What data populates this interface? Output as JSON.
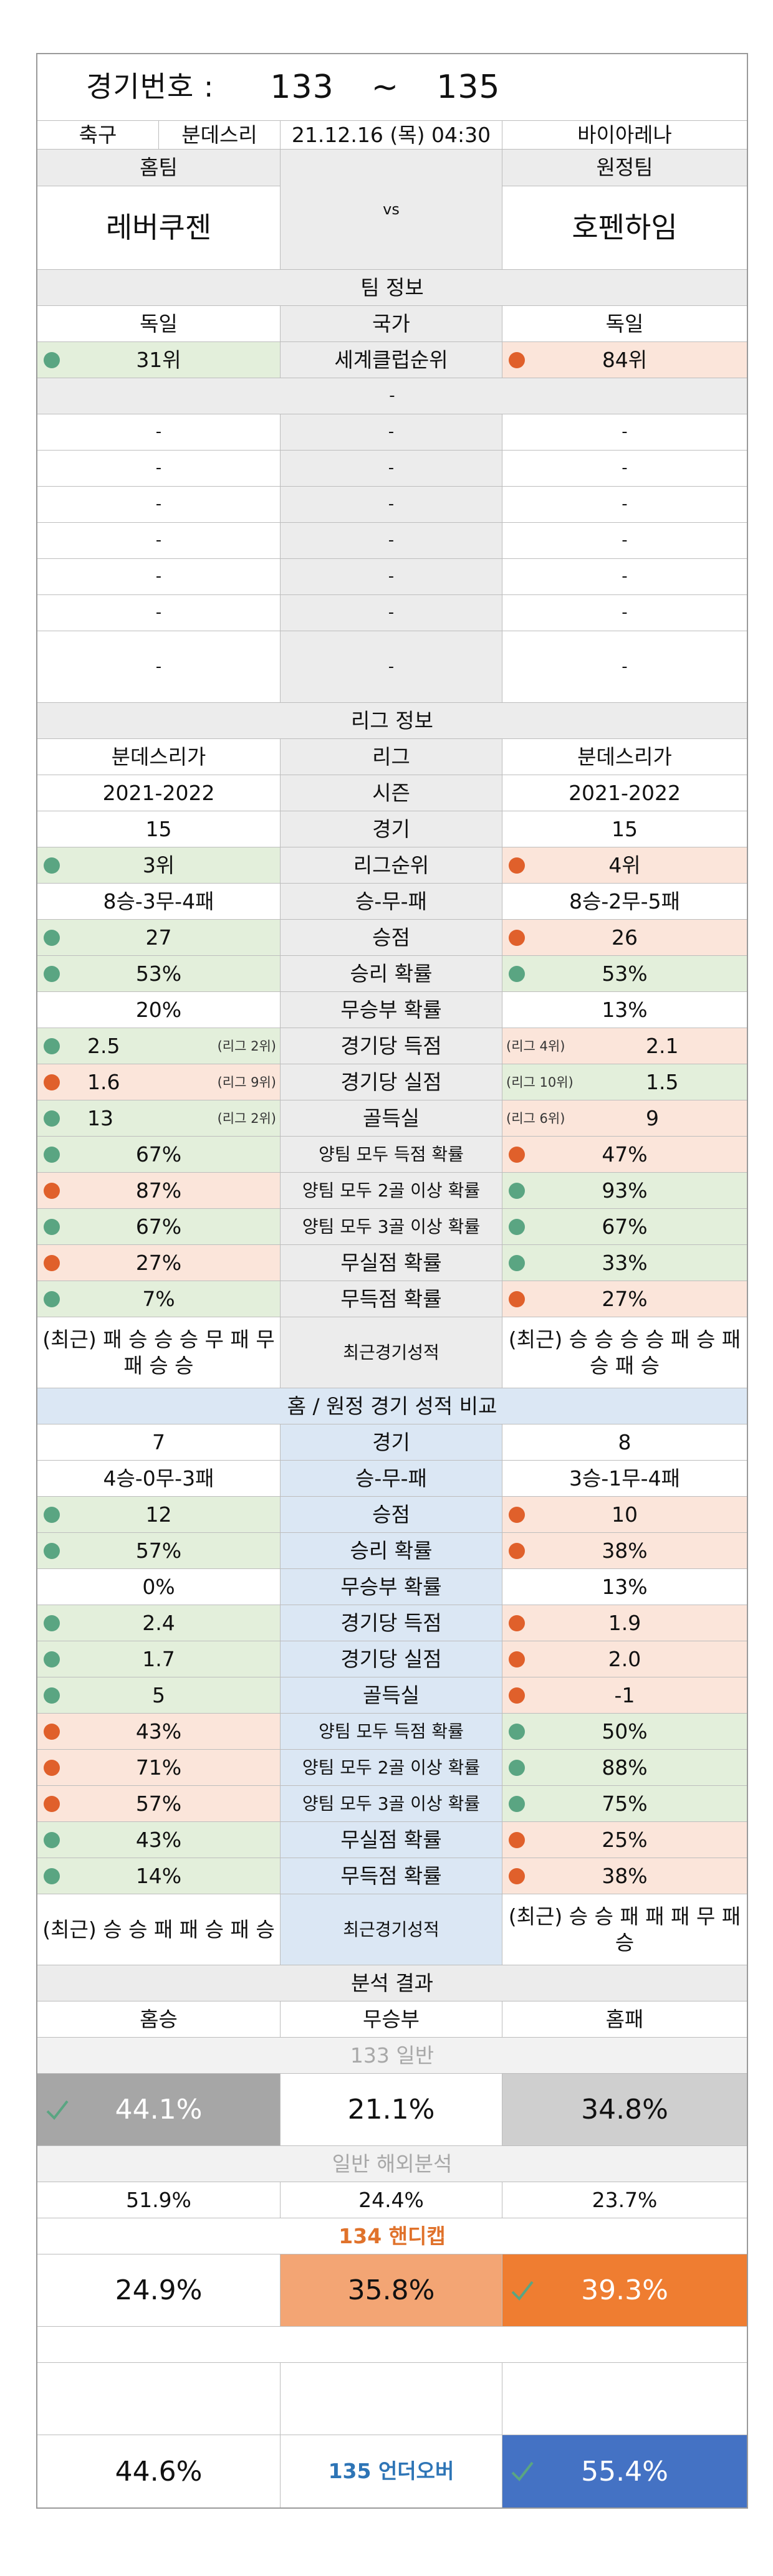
{
  "header": {
    "label": "경기번호 :",
    "from": "133",
    "tilde": "~",
    "to": "135"
  },
  "match": {
    "sport": "축구",
    "league": "분데스리",
    "datetime": "21.12.16 (목) 04:30",
    "venue": "바이아레나"
  },
  "teams": {
    "home_label": "홈팀",
    "away_label": "원정팀",
    "home": "레버쿠젠",
    "away": "호펜하임",
    "vs": "vs"
  },
  "team_info": {
    "title": "팀 정보",
    "country_label": "국가",
    "home_country": "독일",
    "away_country": "독일",
    "rank_label": "세계클럽순위",
    "home_rank": "31위",
    "away_rank": "84위",
    "empty_header": "-",
    "empty_rows": [
      [
        "-",
        "-",
        "-"
      ],
      [
        "-",
        "-",
        "-"
      ],
      [
        "-",
        "-",
        "-"
      ],
      [
        "-",
        "-",
        "-"
      ],
      [
        "-",
        "-",
        "-"
      ],
      [
        "-",
        "-",
        "-"
      ],
      [
        "-",
        "-",
        "-"
      ]
    ]
  },
  "league_info": {
    "title": "리그 정보",
    "rows": [
      {
        "label": "리그",
        "home": "분데스리가",
        "away": "분데스리가",
        "hc": "",
        "ac": ""
      },
      {
        "label": "시즌",
        "home": "2021-2022",
        "away": "2021-2022",
        "hc": "",
        "ac": ""
      },
      {
        "label": "경기",
        "home": "15",
        "away": "15",
        "hc": "",
        "ac": ""
      },
      {
        "label": "리그순위",
        "home": "3위",
        "away": "4위",
        "hc": "g",
        "ac": "o"
      },
      {
        "label": "승-무-패",
        "home": "8승-3무-4패",
        "away": "8승-2무-5패",
        "hc": "",
        "ac": ""
      },
      {
        "label": "승점",
        "home": "27",
        "away": "26",
        "hc": "g",
        "ac": "o"
      },
      {
        "label": "승리 확률",
        "home": "53%",
        "away": "53%",
        "hc": "g",
        "ac": "g"
      },
      {
        "label": "무승부 확률",
        "home": "20%",
        "away": "13%",
        "hc": "",
        "ac": ""
      },
      {
        "label": "경기당 득점",
        "home": "2.5",
        "away": "2.1",
        "hc": "g",
        "ac": "o",
        "htag": "(리그 2위)",
        "atag": "(리그 4위)"
      },
      {
        "label": "경기당 실점",
        "home": "1.6",
        "away": "1.5",
        "hc": "o",
        "ac": "g",
        "htag": "(리그 9위)",
        "atag": "(리그 10위)"
      },
      {
        "label": "골득실",
        "home": "13",
        "away": "9",
        "hc": "g",
        "ac": "o",
        "htag": "(리그 2위)",
        "atag": "(리그 6위)"
      },
      {
        "label": "양팀 모두 득점 확률",
        "home": "67%",
        "away": "47%",
        "hc": "g",
        "ac": "o"
      },
      {
        "label": "양팀 모두 2골 이상 확률",
        "home": "87%",
        "away": "93%",
        "hc": "o",
        "ac": "g"
      },
      {
        "label": "양팀 모두 3골 이상 확률",
        "home": "67%",
        "away": "67%",
        "hc": "g",
        "ac": "g"
      },
      {
        "label": "무실점 확률",
        "home": "27%",
        "away": "33%",
        "hc": "o",
        "ac": "g"
      },
      {
        "label": "무득점 확률",
        "home": "7%",
        "away": "27%",
        "hc": "g",
        "ac": "o"
      }
    ],
    "recent_label": "최근경기성적",
    "home_recent": "(최근) 패 승 승 승 무 패 무 패 승 승",
    "away_recent": "(최근) 승 승 승 승 패 승 패 승 패 승"
  },
  "homeaway": {
    "title": "홈 / 원정 경기 성적 비교",
    "rows": [
      {
        "label": "경기",
        "home": "7",
        "away": "8",
        "hc": "",
        "ac": ""
      },
      {
        "label": "승-무-패",
        "home": "4승-0무-3패",
        "away": "3승-1무-4패",
        "hc": "",
        "ac": ""
      },
      {
        "label": "승점",
        "home": "12",
        "away": "10",
        "hc": "g",
        "ac": "o"
      },
      {
        "label": "승리 확률",
        "home": "57%",
        "away": "38%",
        "hc": "g",
        "ac": "o"
      },
      {
        "label": "무승부 확률",
        "home": "0%",
        "away": "13%",
        "hc": "",
        "ac": ""
      },
      {
        "label": "경기당 득점",
        "home": "2.4",
        "away": "1.9",
        "hc": "g",
        "ac": "o"
      },
      {
        "label": "경기당 실점",
        "home": "1.7",
        "away": "2.0",
        "hc": "g",
        "ac": "o"
      },
      {
        "label": "골득실",
        "home": "5",
        "away": "-1",
        "hc": "g",
        "ac": "o"
      },
      {
        "label": "양팀 모두 득점 확률",
        "home": "43%",
        "away": "50%",
        "hc": "o",
        "ac": "g"
      },
      {
        "label": "양팀 모두 2골 이상 확률",
        "home": "71%",
        "away": "88%",
        "hc": "o",
        "ac": "g"
      },
      {
        "label": "양팀 모두 3골 이상 확률",
        "home": "57%",
        "away": "75%",
        "hc": "o",
        "ac": "g"
      },
      {
        "label": "무실점 확률",
        "home": "43%",
        "away": "25%",
        "hc": "g",
        "ac": "o"
      },
      {
        "label": "무득점 확률",
        "home": "14%",
        "away": "38%",
        "hc": "g",
        "ac": "o"
      }
    ],
    "recent_label": "최근경기성적",
    "home_recent": "(최근) 승 승 패 패 승 패 승",
    "away_recent": "(최근) 승 승 패 패 패 무 패 승"
  },
  "analysis": {
    "title": "분석 결과",
    "home_win": "홈승",
    "draw": "무승부",
    "home_loss": "홈패",
    "general_title": "133 일반",
    "general": [
      "44.1%",
      "21.1%",
      "34.8%"
    ],
    "overseas_title": "일반 해외분석",
    "overseas": [
      "51.9%",
      "24.4%",
      "23.7%"
    ],
    "handicap_title": "134 핸디캡",
    "handicap": [
      "24.9%",
      "35.8%",
      "39.3%"
    ],
    "underover_title": "135 언더오버",
    "underover": [
      "44.6%",
      "55.4%"
    ]
  },
  "colors": {
    "green_dot": "#5aa582",
    "orange_dot": "#e0602b",
    "gray_pick": "#a6a6a6",
    "orange_pick": "#ef7d31",
    "light_orange": "#f3a574",
    "blue_pick": "#4472c4",
    "check": "#5aa582"
  }
}
